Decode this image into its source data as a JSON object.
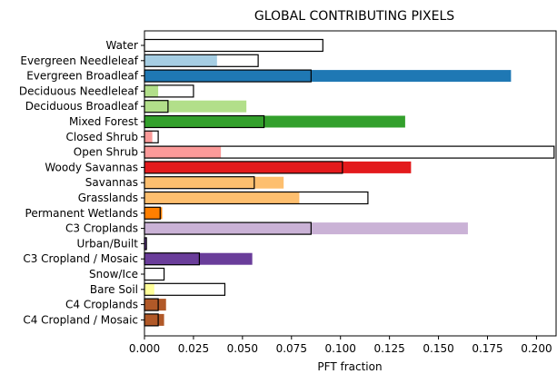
{
  "chart_data": {
    "type": "bar",
    "orientation": "horizontal",
    "title": "GLOBAL CONTRIBUTING PIXELS",
    "xlabel": "PFT fraction",
    "ylabel": "",
    "xlim": [
      0,
      0.21
    ],
    "x_ticks": [
      "0.000",
      "0.025",
      "0.050",
      "0.075",
      "0.100",
      "0.125",
      "0.150",
      "0.175",
      "0.200"
    ],
    "x_tick_values": [
      0,
      0.025,
      0.05,
      0.075,
      0.1,
      0.125,
      0.15,
      0.175,
      0.2
    ],
    "grid": false,
    "legend": "none",
    "categories": [
      "Water",
      "Evergreen Needleleaf",
      "Evergreen Broadleaf",
      "Deciduous Needleleaf",
      "Deciduous Broadleaf",
      "Mixed Forest",
      "Closed Shrub",
      "Open Shrub",
      "Woody Savannas",
      "Savannas",
      "Grasslands",
      "Permanent Wetlands",
      "C3 Croplands",
      "Urban/Built",
      "C3 Cropland / Mosaic",
      "Snow/Ice",
      "Bare Soil",
      "C4 Croplands",
      "C4 Cropland / Mosaic"
    ],
    "colors": [
      "#a6cee3",
      "#a6cee3",
      "#1f78b4",
      "#b2df8a",
      "#b2df8a",
      "#33a02c",
      "#fb9a99",
      "#fb9a99",
      "#e31a1c",
      "#fdbf6f",
      "#fdbf6f",
      "#ff7f00",
      "#cab2d6",
      "#6a3d9a",
      "#6a3d9a",
      "#ffff99",
      "#ffff99",
      "#b15928",
      "#b15928"
    ],
    "series": [
      {
        "values": [
          0,
          0.037,
          0.187,
          0.007,
          0.052,
          0.133,
          0.004,
          0.039,
          0.136,
          0.071,
          0.079,
          0.009,
          0.165,
          0.001,
          0.055,
          0,
          0.005,
          0.011,
          0.01
        ]
      },
      {
        "values": [
          0.091,
          0.058,
          0.085,
          0.025,
          0.012,
          0.061,
          0.007,
          0.209,
          0.101,
          0.056,
          0.114,
          0.008,
          0.085,
          0.001,
          0.028,
          0.01,
          0.041,
          0.007,
          0.007
        ]
      }
    ]
  }
}
